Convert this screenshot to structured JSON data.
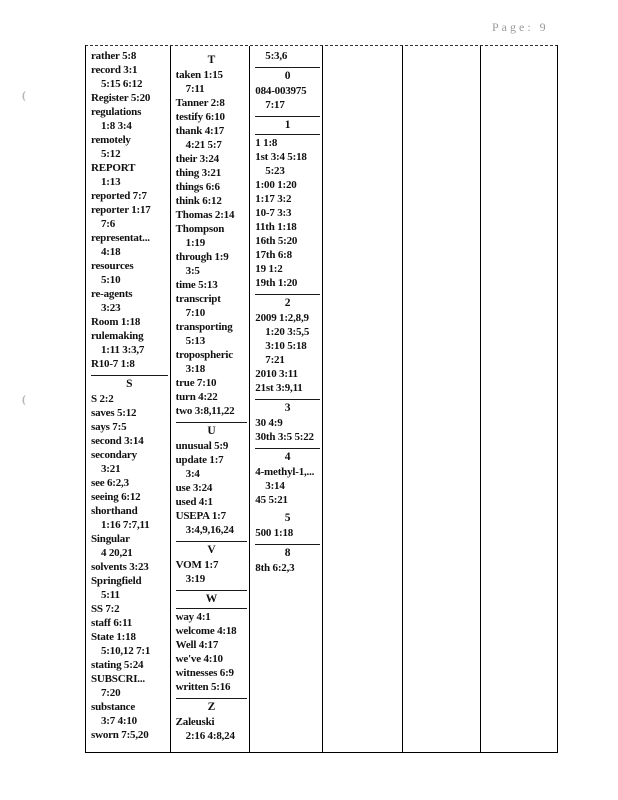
{
  "page_header": {
    "label": "Page: 9"
  },
  "artifacts": {
    "mark1": "(",
    "mark2": "("
  },
  "index": {
    "columns": [
      {
        "name": "col-r-s",
        "items": [
          {
            "t": "e",
            "l": [
              "rather 5:8"
            ]
          },
          {
            "t": "e",
            "l": [
              "record 3:1",
              "5:15 6:12"
            ]
          },
          {
            "t": "e",
            "l": [
              "Register 5:20"
            ]
          },
          {
            "t": "e",
            "l": [
              "regulations",
              "1:8 3:4"
            ]
          },
          {
            "t": "e",
            "l": [
              "remotely",
              "5:12"
            ]
          },
          {
            "t": "e",
            "l": [
              "REPORT",
              "1:13"
            ]
          },
          {
            "t": "e",
            "l": [
              "reported 7:7"
            ]
          },
          {
            "t": "e",
            "l": [
              "reporter 1:17",
              "7:6"
            ]
          },
          {
            "t": "e",
            "l": [
              "representat...",
              "4:18"
            ]
          },
          {
            "t": "e",
            "l": [
              "resources",
              "5:10"
            ]
          },
          {
            "t": "e",
            "l": [
              "re-agents",
              "3:23"
            ]
          },
          {
            "t": "e",
            "l": [
              "Room 1:18"
            ]
          },
          {
            "t": "e",
            "l": [
              "rulemaking",
              "1:11 3:3,7"
            ]
          },
          {
            "t": "e",
            "l": [
              "R10-7 1:8"
            ]
          },
          {
            "t": "h",
            "l": "S",
            "rule_above": true,
            "rule_below": false
          },
          {
            "t": "e",
            "l": [
              "S 2:2"
            ]
          },
          {
            "t": "e",
            "l": [
              "saves 5:12"
            ]
          },
          {
            "t": "e",
            "l": [
              "says 7:5"
            ]
          },
          {
            "t": "e",
            "l": [
              "second 3:14"
            ]
          },
          {
            "t": "e",
            "l": [
              "secondary",
              "3:21"
            ]
          },
          {
            "t": "e",
            "l": [
              "see 6:2,3"
            ]
          },
          {
            "t": "e",
            "l": [
              "seeing 6:12"
            ]
          },
          {
            "t": "e",
            "l": [
              "shorthand",
              "1:16 7:7,11"
            ]
          },
          {
            "t": "e",
            "l": [
              "Singular",
              "4 20,21"
            ]
          },
          {
            "t": "e",
            "l": [
              "solvents 3:23"
            ]
          },
          {
            "t": "e",
            "l": [
              "Springfield",
              "5:11"
            ]
          },
          {
            "t": "e",
            "l": [
              "SS 7:2"
            ]
          },
          {
            "t": "e",
            "l": [
              "staff 6:11"
            ]
          },
          {
            "t": "e",
            "l": [
              "State 1:18",
              "5:10,12 7:1"
            ]
          },
          {
            "t": "e",
            "l": [
              "stating 5:24"
            ]
          },
          {
            "t": "e",
            "l": [
              "SUBSCRI...",
              "7:20"
            ]
          },
          {
            "t": "e",
            "l": [
              "substance",
              "3:7 4:10"
            ]
          },
          {
            "t": "e",
            "l": [
              "sworn 7:5,20"
            ]
          }
        ]
      },
      {
        "name": "col-t-z",
        "items": [
          {
            "t": "h",
            "l": "T",
            "rule_above": false,
            "rule_below": false
          },
          {
            "t": "e",
            "l": [
              "taken 1:15",
              "7:11"
            ]
          },
          {
            "t": "e",
            "l": [
              "Tanner 2:8"
            ]
          },
          {
            "t": "e",
            "l": [
              "testify 6:10"
            ]
          },
          {
            "t": "e",
            "l": [
              "thank 4:17",
              "4:21 5:7"
            ]
          },
          {
            "t": "e",
            "l": [
              "their 3:24"
            ]
          },
          {
            "t": "e",
            "l": [
              "thing 3:21"
            ]
          },
          {
            "t": "e",
            "l": [
              "things 6:6"
            ]
          },
          {
            "t": "e",
            "l": [
              "think 6:12"
            ]
          },
          {
            "t": "e",
            "l": [
              "Thomas 2:14"
            ]
          },
          {
            "t": "e",
            "l": [
              "Thompson",
              "1:19"
            ]
          },
          {
            "t": "e",
            "l": [
              "through 1:9",
              "3:5"
            ]
          },
          {
            "t": "e",
            "l": [
              "time 5:13"
            ]
          },
          {
            "t": "e",
            "l": [
              "transcript",
              "7:10"
            ]
          },
          {
            "t": "e",
            "l": [
              "transporting",
              "5:13"
            ]
          },
          {
            "t": "e",
            "l": [
              "tropospheric",
              "3:18"
            ]
          },
          {
            "t": "e",
            "l": [
              "true 7:10"
            ]
          },
          {
            "t": "e",
            "l": [
              "turn 4:22"
            ]
          },
          {
            "t": "e",
            "l": [
              "two 3:8,11,22"
            ]
          },
          {
            "t": "h",
            "l": "U",
            "rule_above": true,
            "rule_below": false
          },
          {
            "t": "e",
            "l": [
              "unusual 5:9"
            ]
          },
          {
            "t": "e",
            "l": [
              "update 1:7",
              "3:4"
            ]
          },
          {
            "t": "e",
            "l": [
              "use 3:24"
            ]
          },
          {
            "t": "e",
            "l": [
              "used 4:1"
            ]
          },
          {
            "t": "e",
            "l": [
              "USEPA 1:7",
              "3:4,9,16,24"
            ]
          },
          {
            "t": "h",
            "l": "V",
            "rule_above": true,
            "rule_below": false
          },
          {
            "t": "e",
            "l": [
              "VOM 1:7",
              "3:19"
            ]
          },
          {
            "t": "h",
            "l": "W",
            "rule_above": true,
            "rule_below": true
          },
          {
            "t": "e",
            "l": [
              "way 4:1"
            ]
          },
          {
            "t": "e",
            "l": [
              "welcome 4:18"
            ]
          },
          {
            "t": "e",
            "l": [
              "Well 4:17"
            ]
          },
          {
            "t": "e",
            "l": [
              "we've 4:10"
            ]
          },
          {
            "t": "e",
            "l": [
              "witnesses 6:9"
            ]
          },
          {
            "t": "e",
            "l": [
              "written 5:16"
            ]
          },
          {
            "t": "h",
            "l": "Z",
            "rule_above": true,
            "rule_below": false
          },
          {
            "t": "e",
            "l": [
              "Zaleuski",
              "2:16 4:8,24"
            ]
          }
        ]
      },
      {
        "name": "col-numbers",
        "items": [
          {
            "t": "c",
            "l": "5:3,6"
          },
          {
            "t": "h",
            "l": "0",
            "rule_above": true,
            "rule_below": false
          },
          {
            "t": "e",
            "l": [
              "084-003975",
              "7:17"
            ]
          },
          {
            "t": "h",
            "l": "1",
            "rule_above": true,
            "rule_below": true
          },
          {
            "t": "e",
            "l": [
              "1 1:8"
            ]
          },
          {
            "t": "e",
            "l": [
              "1st 3:4 5:18",
              "5:23"
            ]
          },
          {
            "t": "e",
            "l": [
              "1:00 1:20"
            ]
          },
          {
            "t": "e",
            "l": [
              "1:17 3:2"
            ]
          },
          {
            "t": "e",
            "l": [
              "10-7 3:3"
            ]
          },
          {
            "t": "e",
            "l": [
              "11th 1:18"
            ]
          },
          {
            "t": "e",
            "l": [
              "16th 5:20"
            ]
          },
          {
            "t": "e",
            "l": [
              "17th 6:8"
            ]
          },
          {
            "t": "e",
            "l": [
              "19 1:2"
            ]
          },
          {
            "t": "e",
            "l": [
              "19th 1:20"
            ]
          },
          {
            "t": "h",
            "l": "2",
            "rule_above": true,
            "rule_below": false
          },
          {
            "t": "e",
            "l": [
              "2009 1:2,8,9",
              "1:20 3:5,5",
              "3:10 5:18",
              "7:21"
            ]
          },
          {
            "t": "e",
            "l": [
              "2010 3:11"
            ]
          },
          {
            "t": "e",
            "l": [
              "21st 3:9,11"
            ]
          },
          {
            "t": "h",
            "l": "3",
            "rule_above": true,
            "rule_below": false
          },
          {
            "t": "e",
            "l": [
              "30 4:9"
            ]
          },
          {
            "t": "e",
            "l": [
              "30th 3:5 5:22"
            ]
          },
          {
            "t": "h",
            "l": "4",
            "rule_above": true,
            "rule_below": false
          },
          {
            "t": "e",
            "l": [
              "4-methyl-1,...",
              "3:14"
            ]
          },
          {
            "t": "e",
            "l": [
              "45 5:21"
            ]
          },
          {
            "t": "h",
            "l": "5",
            "rule_above": false,
            "rule_below": false
          },
          {
            "t": "e",
            "l": [
              "500 1:18"
            ]
          },
          {
            "t": "h",
            "l": "8",
            "rule_above": true,
            "rule_below": false
          },
          {
            "t": "e",
            "l": [
              "8th 6:2,3"
            ]
          }
        ]
      },
      {
        "name": "col-empty-1",
        "items": []
      },
      {
        "name": "col-empty-2",
        "items": []
      },
      {
        "name": "col-empty-3",
        "items": []
      }
    ]
  }
}
